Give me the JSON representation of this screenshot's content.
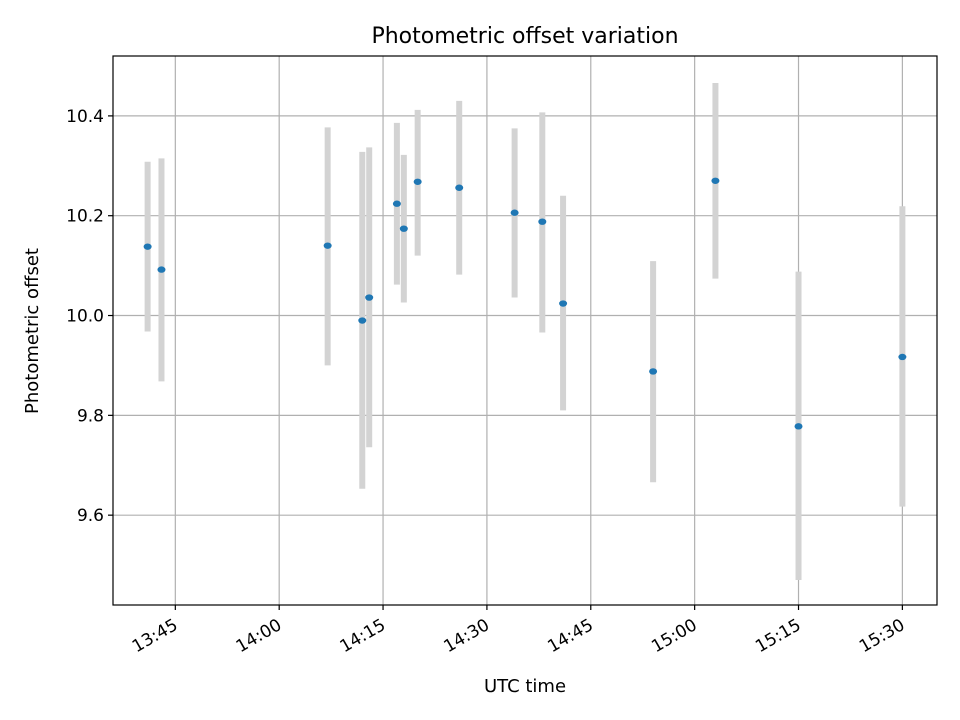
{
  "chart_data": {
    "type": "scatter",
    "title": "Photometric offset variation",
    "xlabel": "UTC time",
    "ylabel": "Photometric offset",
    "x_ticks": [
      "13:45",
      "14:00",
      "14:15",
      "14:30",
      "14:45",
      "15:00",
      "15:15",
      "15:30"
    ],
    "y_ticks": [
      "9.6",
      "9.8",
      "10.0",
      "10.2",
      "10.4"
    ],
    "xlim": [
      "13:36",
      "15:35"
    ],
    "ylim": [
      9.42,
      10.52
    ],
    "grid": true,
    "colors": {
      "marker": "#1f77b4",
      "errorbar": "#d3d3d3",
      "grid": "#b0b0b0"
    },
    "series": [
      {
        "points": [
          {
            "x": "13:41",
            "y": 10.138,
            "low": 9.968,
            "high": 10.308
          },
          {
            "x": "13:43",
            "y": 10.092,
            "low": 9.868,
            "high": 10.315
          },
          {
            "x": "14:07",
            "y": 10.14,
            "low": 9.9,
            "high": 10.377
          },
          {
            "x": "14:12",
            "y": 9.99,
            "low": 9.653,
            "high": 10.328
          },
          {
            "x": "14:13",
            "y": 10.036,
            "low": 9.736,
            "high": 10.337
          },
          {
            "x": "14:17",
            "y": 10.224,
            "low": 10.062,
            "high": 10.386
          },
          {
            "x": "14:18",
            "y": 10.174,
            "low": 10.026,
            "high": 10.322
          },
          {
            "x": "14:20",
            "y": 10.268,
            "low": 10.12,
            "high": 10.412
          },
          {
            "x": "14:26",
            "y": 10.256,
            "low": 10.082,
            "high": 10.43
          },
          {
            "x": "14:34",
            "y": 10.206,
            "low": 10.036,
            "high": 10.375
          },
          {
            "x": "14:38",
            "y": 10.188,
            "low": 9.966,
            "high": 10.407
          },
          {
            "x": "14:41",
            "y": 10.024,
            "low": 9.81,
            "high": 10.24
          },
          {
            "x": "14:54",
            "y": 9.888,
            "low": 9.666,
            "high": 10.109
          },
          {
            "x": "15:03",
            "y": 10.27,
            "low": 10.074,
            "high": 10.466
          },
          {
            "x": "15:15",
            "y": 9.778,
            "low": 9.47,
            "high": 10.088
          },
          {
            "x": "15:30",
            "y": 9.917,
            "low": 9.617,
            "high": 10.219
          }
        ]
      }
    ]
  }
}
